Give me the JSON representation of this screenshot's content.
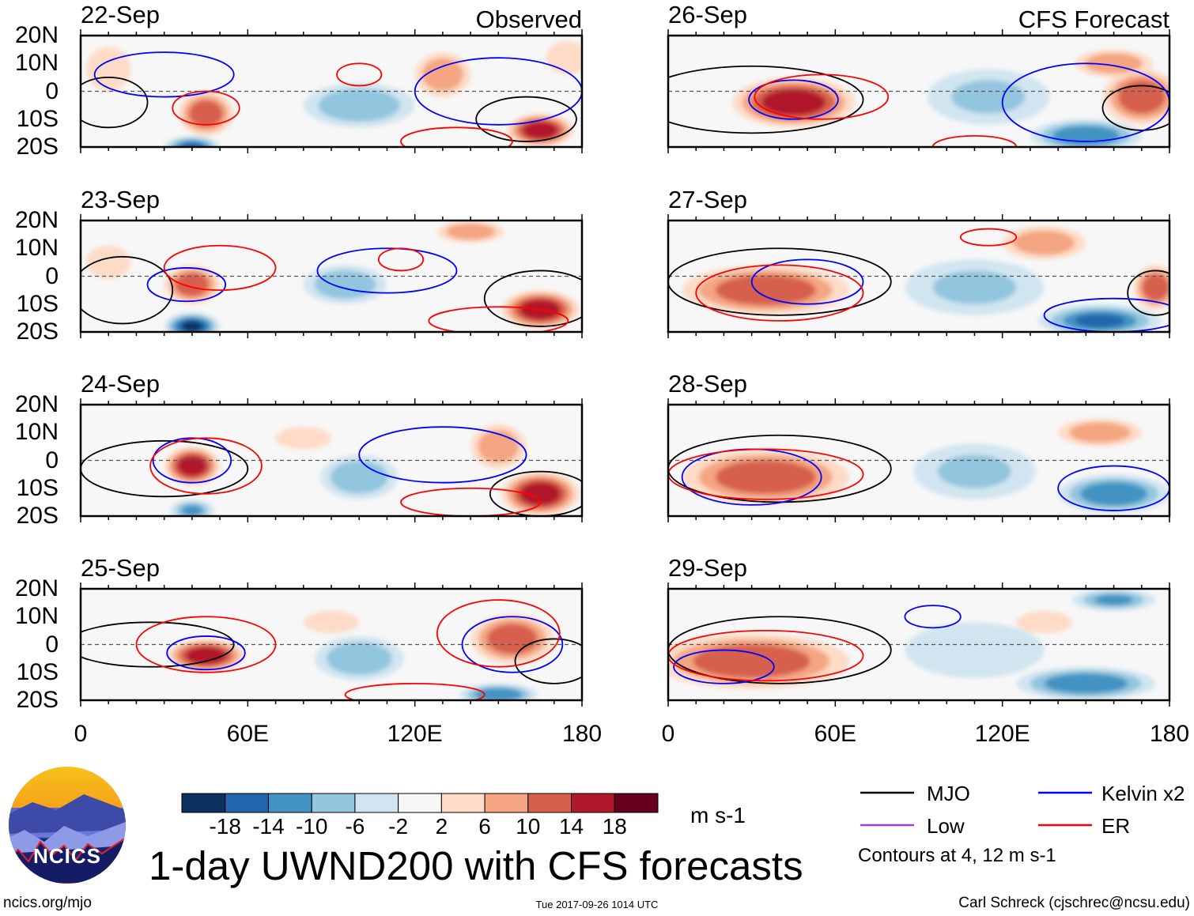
{
  "chart_data": {
    "type": "heatmap",
    "title": "1-day UWND200 with CFS forecasts",
    "units": "m s-1",
    "column_labels": [
      "Observed",
      "CFS Forecast"
    ],
    "ylim": [
      -20,
      20
    ],
    "xlim": [
      0,
      180
    ],
    "yticks": [
      "20N",
      "10N",
      "0",
      "10S",
      "20S"
    ],
    "xticks": [
      "0",
      "60E",
      "120E",
      "180"
    ],
    "colorbar": {
      "levels": [
        "-18",
        "-14",
        "-10",
        "-6",
        "-2",
        "2",
        "6",
        "10",
        "14",
        "18"
      ],
      "colors": [
        "#0b3160",
        "#2166ac",
        "#4393c3",
        "#92c5de",
        "#d1e5f0",
        "#f7f7f7",
        "#fddbc7",
        "#f4a582",
        "#d6604d",
        "#b2182b",
        "#67001f"
      ]
    },
    "legend": [
      {
        "name": "MJO",
        "color": "#000000"
      },
      {
        "name": "Kelvin x2",
        "color": "#0000ff"
      },
      {
        "name": "Low",
        "color": "#a040d0"
      },
      {
        "name": "ER",
        "color": "#ff0000"
      }
    ],
    "contour_note": "Contours at 4, 12 m s-1",
    "panels": [
      {
        "date": "22-Sep",
        "col": 0,
        "row": 0,
        "anom": [
          [
            45,
            -8,
            10,
            8,
            14
          ],
          [
            165,
            -14,
            12,
            6,
            18
          ],
          [
            130,
            6,
            10,
            8,
            9
          ],
          [
            100,
            -5,
            20,
            8,
            -7
          ],
          [
            40,
            -20,
            10,
            4,
            -14
          ],
          [
            10,
            8,
            8,
            8,
            5
          ],
          [
            175,
            12,
            8,
            6,
            6
          ]
        ],
        "contours": [
          [
            "mjo",
            10,
            -4,
            14,
            9
          ],
          [
            "mjo",
            160,
            -10,
            18,
            8
          ],
          [
            "kelvin",
            30,
            6,
            25,
            8
          ],
          [
            "kelvin",
            150,
            0,
            30,
            12
          ],
          [
            "er",
            45,
            -6,
            12,
            6
          ],
          [
            "er",
            100,
            6,
            8,
            4
          ],
          [
            "er",
            135,
            -18,
            20,
            5
          ]
        ]
      },
      {
        "date": "23-Sep",
        "col": 0,
        "row": 1,
        "anom": [
          [
            40,
            -3,
            10,
            7,
            12
          ],
          [
            165,
            -12,
            14,
            7,
            18
          ],
          [
            40,
            -18,
            10,
            5,
            -18
          ],
          [
            95,
            -3,
            15,
            7,
            -8
          ],
          [
            140,
            16,
            12,
            4,
            7
          ],
          [
            10,
            5,
            8,
            6,
            5
          ]
        ],
        "contours": [
          [
            "mjo",
            15,
            -5,
            18,
            12
          ],
          [
            "mjo",
            165,
            -8,
            20,
            10
          ],
          [
            "kelvin",
            38,
            -3,
            14,
            6
          ],
          [
            "kelvin",
            110,
            2,
            25,
            8
          ],
          [
            "er",
            50,
            3,
            20,
            8
          ],
          [
            "er",
            115,
            6,
            8,
            4
          ],
          [
            "er",
            150,
            -16,
            25,
            5
          ]
        ]
      },
      {
        "date": "24-Sep",
        "col": 0,
        "row": 2,
        "anom": [
          [
            40,
            -2,
            10,
            7,
            18
          ],
          [
            165,
            -12,
            14,
            8,
            18
          ],
          [
            150,
            5,
            10,
            8,
            8
          ],
          [
            40,
            -18,
            8,
            4,
            -10
          ],
          [
            100,
            -6,
            14,
            8,
            -8
          ],
          [
            80,
            8,
            10,
            4,
            5
          ]
        ],
        "contours": [
          [
            "mjo",
            30,
            -3,
            30,
            10
          ],
          [
            "mjo",
            165,
            -12,
            18,
            8
          ],
          [
            "kelvin",
            40,
            0,
            14,
            8
          ],
          [
            "kelvin",
            130,
            2,
            30,
            10
          ],
          [
            "er",
            45,
            -2,
            20,
            10
          ],
          [
            "er",
            140,
            -15,
            25,
            5
          ]
        ]
      },
      {
        "date": "25-Sep",
        "col": 0,
        "row": 3,
        "anom": [
          [
            45,
            -4,
            14,
            6,
            18
          ],
          [
            155,
            2,
            15,
            9,
            14
          ],
          [
            100,
            -5,
            16,
            8,
            -8
          ],
          [
            150,
            -18,
            14,
            4,
            -12
          ],
          [
            90,
            8,
            10,
            4,
            6
          ]
        ],
        "contours": [
          [
            "mjo",
            25,
            0,
            30,
            8
          ],
          [
            "mjo",
            170,
            -6,
            14,
            8
          ],
          [
            "kelvin",
            45,
            -3,
            14,
            6
          ],
          [
            "kelvin",
            155,
            0,
            18,
            10
          ],
          [
            "er",
            45,
            0,
            25,
            10
          ],
          [
            "er",
            150,
            4,
            22,
            12
          ],
          [
            "er",
            120,
            -18,
            25,
            4
          ]
        ]
      },
      {
        "date": "26-Sep",
        "col": 1,
        "row": 0,
        "anom": [
          [
            45,
            -4,
            22,
            9,
            18
          ],
          [
            170,
            -2,
            14,
            10,
            14
          ],
          [
            150,
            -16,
            20,
            6,
            -12
          ],
          [
            115,
            -2,
            22,
            10,
            -6
          ],
          [
            160,
            10,
            14,
            5,
            8
          ]
        ],
        "contours": [
          [
            "mjo",
            30,
            -3,
            40,
            12
          ],
          [
            "mjo",
            170,
            -6,
            14,
            8
          ],
          [
            "kelvin",
            45,
            -3,
            16,
            7
          ],
          [
            "kelvin",
            150,
            -4,
            30,
            14
          ],
          [
            "er",
            55,
            -2,
            24,
            8
          ],
          [
            "er",
            110,
            -20,
            15,
            4
          ]
        ]
      },
      {
        "date": "27-Sep",
        "col": 1,
        "row": 1,
        "anom": [
          [
            35,
            -5,
            30,
            9,
            14
          ],
          [
            175,
            -4,
            8,
            8,
            12
          ],
          [
            155,
            -16,
            22,
            6,
            -14
          ],
          [
            110,
            -4,
            25,
            10,
            -6
          ],
          [
            135,
            12,
            15,
            6,
            7
          ]
        ],
        "contours": [
          [
            "mjo",
            40,
            -2,
            40,
            12
          ],
          [
            "mjo",
            175,
            -6,
            10,
            8
          ],
          [
            "kelvin",
            50,
            -2,
            20,
            8
          ],
          [
            "kelvin",
            160,
            -14,
            25,
            6
          ],
          [
            "er",
            40,
            -6,
            30,
            10
          ],
          [
            "er",
            115,
            14,
            10,
            3
          ]
        ]
      },
      {
        "date": "28-Sep",
        "col": 1,
        "row": 2,
        "anom": [
          [
            35,
            -6,
            30,
            10,
            14
          ],
          [
            160,
            -12,
            20,
            7,
            -12
          ],
          [
            110,
            -4,
            22,
            10,
            -6
          ],
          [
            155,
            10,
            15,
            5,
            8
          ]
        ],
        "contours": [
          [
            "mjo",
            40,
            -3,
            40,
            12
          ],
          [
            "kelvin",
            30,
            -6,
            25,
            10
          ],
          [
            "kelvin",
            160,
            -10,
            20,
            8
          ],
          [
            "er",
            35,
            -5,
            35,
            9
          ]
        ]
      },
      {
        "date": "29-Sep",
        "col": 1,
        "row": 3,
        "anom": [
          [
            30,
            -6,
            35,
            10,
            14
          ],
          [
            150,
            -14,
            25,
            6,
            -12
          ],
          [
            160,
            16,
            15,
            4,
            -10
          ],
          [
            110,
            -2,
            25,
            10,
            -5
          ],
          [
            135,
            8,
            10,
            4,
            6
          ]
        ],
        "contours": [
          [
            "mjo",
            40,
            -2,
            40,
            12
          ],
          [
            "kelvin",
            20,
            -8,
            18,
            6
          ],
          [
            "kelvin",
            95,
            10,
            10,
            4
          ],
          [
            "er",
            35,
            -4,
            35,
            9
          ]
        ]
      }
    ]
  },
  "footer": {
    "site": "ncics.org/mjo",
    "timestamp": "Tue 2017-09-26 1014 UTC",
    "author": "Carl Schreck (cjschrec@ncsu.edu)"
  },
  "logo": {
    "text": "NCICS"
  }
}
